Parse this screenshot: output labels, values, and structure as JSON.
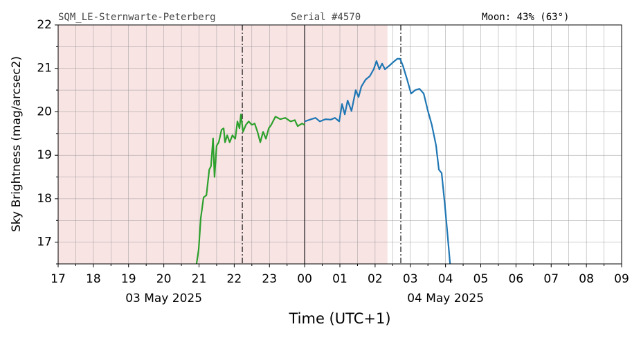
{
  "chart_data": {
    "type": "line",
    "header": [
      "SQM_LE-Sternwarte-Peterberg",
      "Serial #4570",
      "Moon: 43% (63°)"
    ],
    "xlabel": "Time (UTC+1)",
    "ylabel": "Sky Brightness (mag/arcsec2)",
    "xlim": [
      17,
      33
    ],
    "ylim": [
      16.5,
      22
    ],
    "xticks": [
      {
        "value": 17,
        "label": "17"
      },
      {
        "value": 18,
        "label": "18"
      },
      {
        "value": 19,
        "label": "19"
      },
      {
        "value": 20,
        "label": "20"
      },
      {
        "value": 21,
        "label": "21"
      },
      {
        "value": 22,
        "label": "22"
      },
      {
        "value": 23,
        "label": "23"
      },
      {
        "value": 24,
        "label": "00"
      },
      {
        "value": 25,
        "label": "01"
      },
      {
        "value": 26,
        "label": "02"
      },
      {
        "value": 27,
        "label": "03"
      },
      {
        "value": 28,
        "label": "04"
      },
      {
        "value": 29,
        "label": "05"
      },
      {
        "value": 30,
        "label": "06"
      },
      {
        "value": 31,
        "label": "07"
      },
      {
        "value": 32,
        "label": "08"
      },
      {
        "value": 33,
        "label": "09"
      }
    ],
    "xminor": [
      17.5,
      18.5,
      19.5,
      20.5,
      21.5,
      22.5,
      23.5,
      24.5,
      25.5,
      26.5,
      27.5,
      28.5,
      29.5,
      30.5,
      31.5,
      32.5
    ],
    "yticks": [
      17,
      18,
      19,
      20,
      21,
      22
    ],
    "yminor": [
      16.5,
      17.5,
      18.5,
      19.5,
      20.5,
      21.5
    ],
    "grid": true,
    "annotations": [
      {
        "text": "03 May 2025",
        "x": 20
      },
      {
        "text": "04 May 2025",
        "x": 28
      }
    ],
    "shade": {
      "from": 17,
      "to": 26.35,
      "color": "#f9e4e4"
    },
    "vlines": [
      {
        "x": 22.23,
        "style": "dashdot"
      },
      {
        "x": 24,
        "style": "solid"
      },
      {
        "x": 26.73,
        "style": "dashdot"
      }
    ],
    "series": [
      {
        "color": "#2ca02c",
        "x": [
          20.93,
          20.99,
          21.05,
          21.13,
          21.21,
          21.29,
          21.34,
          21.4,
          21.44,
          21.5,
          21.56,
          21.64,
          21.7,
          21.74,
          21.8,
          21.87,
          21.95,
          22.03,
          22.09,
          22.15,
          22.19,
          22.25,
          22.33,
          22.41,
          22.5,
          22.58,
          22.66,
          22.74,
          22.82,
          22.9,
          22.98,
          23.05,
          23.17,
          23.31,
          23.45,
          23.6,
          23.72,
          23.8,
          23.92,
          24.0
        ],
        "values": [
          16.5,
          16.83,
          17.55,
          18.03,
          18.08,
          18.67,
          18.75,
          19.39,
          18.5,
          19.22,
          19.3,
          19.59,
          19.62,
          19.3,
          19.46,
          19.3,
          19.46,
          19.38,
          19.78,
          19.62,
          19.94,
          19.54,
          19.7,
          19.78,
          19.7,
          19.73,
          19.54,
          19.3,
          19.54,
          19.38,
          19.62,
          19.7,
          19.89,
          19.83,
          19.86,
          19.78,
          19.81,
          19.67,
          19.73,
          19.7
        ]
      },
      {
        "color": "#1f77b4",
        "x": [
          24.0,
          24.19,
          24.31,
          24.43,
          24.59,
          24.74,
          24.86,
          24.98,
          25.06,
          25.14,
          25.22,
          25.33,
          25.45,
          25.53,
          25.61,
          25.73,
          25.85,
          25.96,
          26.04,
          26.12,
          26.2,
          26.28,
          26.4,
          26.51,
          26.63,
          26.71,
          26.79,
          26.91,
          27.02,
          27.14,
          27.26,
          27.38,
          27.5,
          27.61,
          27.73,
          27.81,
          27.89,
          27.97,
          28.05,
          28.13
        ],
        "values": [
          19.78,
          19.83,
          19.86,
          19.78,
          19.83,
          19.82,
          19.86,
          19.78,
          20.18,
          19.94,
          20.26,
          20.02,
          20.5,
          20.34,
          20.58,
          20.74,
          20.82,
          20.98,
          21.17,
          20.98,
          21.11,
          20.98,
          21.06,
          21.14,
          21.22,
          21.22,
          21.06,
          20.74,
          20.42,
          20.5,
          20.53,
          20.42,
          20.02,
          19.7,
          19.23,
          18.67,
          18.59,
          17.95,
          17.23,
          16.5
        ]
      }
    ]
  }
}
